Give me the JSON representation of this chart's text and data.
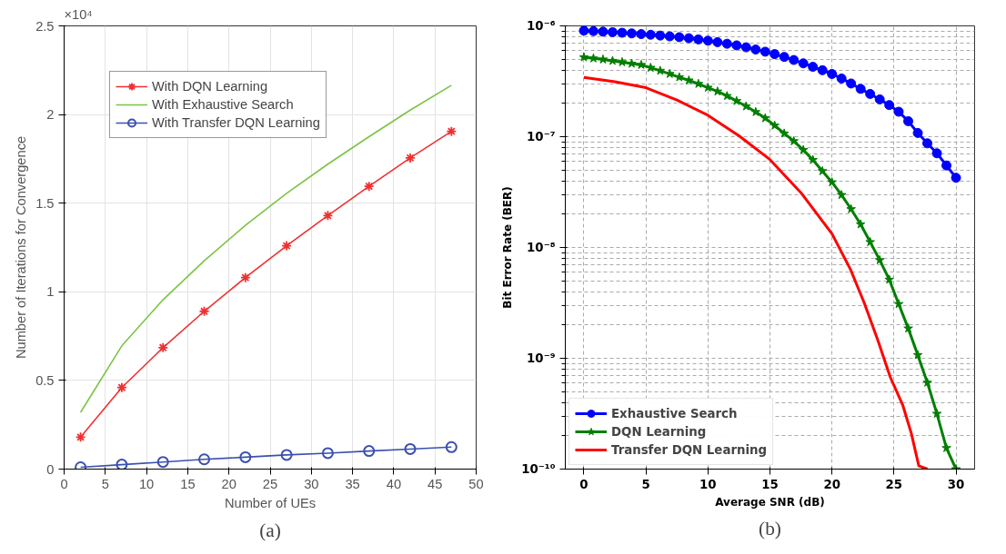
{
  "chart_data": [
    {
      "type": "line",
      "xlabel": "Number of UEs",
      "ylabel": "Number of Iterations for Convergence",
      "annotations": [
        "×10⁴",
        "(a)"
      ],
      "xlim": [
        0,
        50
      ],
      "xticks": [
        0,
        5,
        10,
        15,
        20,
        25,
        30,
        35,
        40,
        45,
        50
      ],
      "ylim": [
        0,
        2.5
      ],
      "yticks": [
        0,
        0.5,
        1,
        1.5,
        2,
        2.5
      ],
      "grid": true,
      "legend": "top left",
      "x": [
        2,
        7,
        12,
        17,
        22,
        27,
        32,
        37,
        42,
        47
      ],
      "series": [
        {
          "name": "With DQN Learning",
          "color": "#f03030",
          "marker": "cross",
          "values": [
            0.18,
            0.46,
            0.685,
            0.89,
            1.08,
            1.26,
            1.43,
            1.595,
            1.755,
            1.905
          ]
        },
        {
          "name": "With Exhaustive Search",
          "color": "#7cc444",
          "marker": "none",
          "values": [
            0.32,
            0.695,
            0.955,
            1.175,
            1.375,
            1.555,
            1.72,
            1.875,
            2.025,
            2.165
          ]
        },
        {
          "name": "With Transfer DQN Learning",
          "color": "#3a4fb0",
          "marker": "circle",
          "values": [
            0.01,
            0.025,
            0.04,
            0.055,
            0.067,
            0.08,
            0.09,
            0.102,
            0.113,
            0.124
          ]
        }
      ]
    },
    {
      "type": "line",
      "xlabel": "Average SNR (dB)",
      "ylabel": "Bit Error Rate (BER)",
      "annotations": [
        "(b)"
      ],
      "log": "y",
      "xlim": [
        -1.5,
        31.5
      ],
      "xticks": [
        0,
        5,
        10,
        15,
        20,
        25,
        30
      ],
      "ylim": [
        1e-10,
        1e-06
      ],
      "yticks": [
        {
          "value": 1e-10,
          "label": "10⁻¹⁰"
        },
        {
          "value": 1e-09,
          "label": "10⁻⁹"
        },
        {
          "value": 1e-08,
          "label": "10⁻⁸"
        },
        {
          "value": 1e-07,
          "label": "10⁻⁷"
        },
        {
          "value": 1e-06,
          "label": "10⁻⁶"
        }
      ],
      "grid": true,
      "legend": "bottom left",
      "x": [
        0,
        0.77,
        1.54,
        2.31,
        3.08,
        3.85,
        4.62,
        5.38,
        6.15,
        6.92,
        7.69,
        8.46,
        9.23,
        10.0,
        10.77,
        11.54,
        12.31,
        13.08,
        13.85,
        14.62,
        15.38,
        16.15,
        16.92,
        17.69,
        18.46,
        19.23,
        20.0,
        20.77,
        21.54,
        22.31,
        23.08,
        23.85,
        24.62,
        25.38,
        26.15,
        26.92,
        27.69,
        28.46,
        29.23,
        30.0
      ],
      "series": [
        {
          "name": "Exhaustive Search",
          "color": "#0000ff",
          "marker": "circle",
          "values": [
            9.06e-07,
            8.97e-07,
            8.87e-07,
            8.77e-07,
            8.67e-07,
            8.55e-07,
            8.43e-07,
            8.32e-07,
            8.18e-07,
            8.04e-07,
            7.91e-07,
            7.74e-07,
            7.55e-07,
            7.35e-07,
            7.13e-07,
            6.9e-07,
            6.67e-07,
            6.41e-07,
            6.12e-07,
            5.85e-07,
            5.56e-07,
            5.25e-07,
            4.92e-07,
            4.59e-07,
            4.27e-07,
            3.98e-07,
            3.68e-07,
            3.35e-07,
            3.02e-07,
            2.7e-07,
            2.43e-07,
            2.17e-07,
            1.93e-07,
            1.68e-07,
            1.38e-07,
            1.08e-07,
            8.71e-08,
            7.08e-08,
            5.5e-08,
            4.26e-08
          ]
        },
        {
          "name": "DQN Learning",
          "color": "#007f00",
          "marker": "star",
          "values": [
            5.21e-07,
            5.09e-07,
            4.98e-07,
            4.84e-07,
            4.71e-07,
            4.57e-07,
            4.45e-07,
            4.19e-07,
            3.94e-07,
            3.69e-07,
            3.44e-07,
            3.22e-07,
            3e-07,
            2.77e-07,
            2.56e-07,
            2.33e-07,
            2.1e-07,
            1.88e-07,
            1.67e-07,
            1.47e-07,
            1.26e-07,
            1.07e-07,
            9.12e-08,
            7.59e-08,
            6.17e-08,
            4.89e-08,
            3.88e-08,
            2.98e-08,
            2.22e-08,
            1.62e-08,
            1.12e-08,
            7.69e-09,
            5.13e-09,
            3.09e-09,
            1.86e-09,
            1.07e-09,
            6.03e-10,
            3.16e-10,
            1.55e-10,
            1e-10
          ]
        },
        {
          "name": "Transfer DQN Learning",
          "color": "#ff0000",
          "marker": "none",
          "x": [
            0,
            2.5,
            5,
            7.5,
            10,
            12.5,
            15,
            17.5,
            20,
            21.5,
            22.6,
            23.7,
            24.7,
            25.7,
            26.4,
            27.0,
            27.7
          ],
          "values": [
            3.42e-07,
            3.13e-07,
            2.77e-07,
            2.14e-07,
            1.56e-07,
            1.02e-07,
            6.22e-08,
            3.12e-08,
            1.33e-08,
            6.31e-09,
            3.16e-09,
            1.45e-09,
            6.76e-10,
            3.8e-10,
            2.09e-10,
            1.07e-10,
            1e-10
          ]
        }
      ]
    }
  ]
}
